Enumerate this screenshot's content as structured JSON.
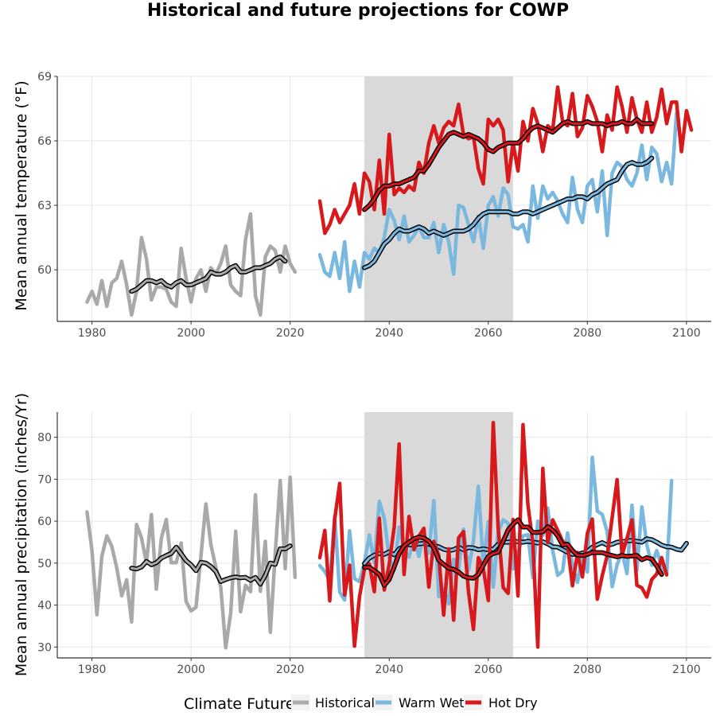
{
  "title": "Historical and future projections for COWP",
  "legend": {
    "title": "Climate Future",
    "items": [
      {
        "label": "Historical",
        "color": "#a9a9a9"
      },
      {
        "label": "Warm Wet",
        "color": "#7ab8e0"
      },
      {
        "label": "Hot Dry",
        "color": "#d7191c"
      }
    ]
  },
  "chart_data": [
    {
      "type": "line",
      "ylabel": "Mean annual temperature (°F)",
      "xlim": [
        1973,
        2105
      ],
      "ylim": [
        57.6,
        69
      ],
      "xticks": [
        1980,
        2000,
        2020,
        2040,
        2060,
        2080,
        2100
      ],
      "yticks": [
        60,
        63,
        66,
        69
      ],
      "grid": true,
      "shaded_period": [
        2035,
        2065
      ],
      "series": [
        {
          "name": "Historical",
          "x_start": 1979,
          "values": [
            58.5,
            59.0,
            58.4,
            59.5,
            58.3,
            59.4,
            59.6,
            60.4,
            59.3,
            57.9,
            59.0,
            61.5,
            60.5,
            58.6,
            59.2,
            59.2,
            59.1,
            58.5,
            58.3,
            61.0,
            59.6,
            58.5,
            59.6,
            60.0,
            59.0,
            60.1,
            59.8,
            60.3,
            61.1,
            59.3,
            59.0,
            58.8,
            61.4,
            62.6,
            58.8,
            57.9,
            60.6,
            61.1,
            60.9,
            59.9,
            61.1,
            60.3,
            59.9
          ]
        },
        {
          "name": "Historical (moving average)",
          "x_start": 1988,
          "values": [
            59.0,
            59.1,
            59.3,
            59.5,
            59.5,
            59.4,
            59.5,
            59.3,
            59.2,
            59.4,
            59.5,
            59.3,
            59.3,
            59.4,
            59.5,
            59.6,
            59.9,
            59.8,
            59.8,
            59.9,
            60.1,
            60.2,
            59.9,
            59.9,
            60.0,
            60.1,
            60.1,
            60.2,
            60.3,
            60.5,
            60.6,
            60.4
          ]
        },
        {
          "name": "Warm Wet",
          "x_start": 2026,
          "values": [
            60.7,
            59.9,
            59.7,
            60.8,
            59.6,
            61.3,
            59.0,
            60.4,
            59.2,
            60.8,
            60.5,
            61.0,
            60.8,
            61.5,
            62.8,
            62.3,
            61.4,
            62.5,
            61.3,
            61.6,
            62.0,
            61.5,
            61.5,
            62.2,
            60.8,
            62.1,
            61.3,
            59.8,
            63.0,
            62.9,
            62.1,
            61.3,
            62.5,
            61.0,
            63.0,
            63.4,
            62.5,
            63.8,
            63.5,
            62.0,
            61.9,
            62.1,
            61.3,
            63.9,
            62.4,
            63.9,
            63.3,
            63.6,
            63.2,
            62.6,
            62.2,
            64.3,
            62.8,
            62.2,
            63.9,
            64.2,
            62.7,
            64.6,
            61.6,
            64.5,
            65.0,
            64.8,
            64.2,
            63.9,
            64.5,
            65.8,
            64.2,
            65.7,
            65.4,
            64.1,
            65.0,
            64.0,
            67.3,
            65.8
          ]
        },
        {
          "name": "Warm Wet (moving average)",
          "x_start": 2035,
          "values": [
            60.1,
            60.2,
            60.4,
            60.8,
            61.2,
            61.4,
            61.7,
            61.9,
            61.8,
            61.8,
            61.9,
            62.0,
            61.9,
            61.7,
            61.8,
            61.7,
            61.6,
            61.7,
            61.8,
            61.8,
            61.8,
            61.9,
            62.1,
            62.4,
            62.6,
            62.7,
            62.7,
            62.7,
            62.7,
            62.7,
            62.6,
            62.6,
            62.7,
            62.7,
            62.6,
            62.7,
            62.8,
            62.9,
            63.0,
            63.1,
            63.2,
            63.3,
            63.3,
            63.4,
            63.4,
            63.3,
            63.5,
            63.6,
            63.8,
            64.0,
            64.1,
            64.2,
            64.6,
            64.9,
            65.0,
            64.9,
            64.9,
            65.0,
            65.2
          ]
        },
        {
          "name": "Hot Dry",
          "x_start": 2026,
          "values": [
            63.2,
            61.7,
            62.1,
            62.8,
            62.2,
            62.6,
            63.0,
            64.0,
            62.6,
            64.5,
            64.1,
            62.8,
            65.1,
            62.6,
            66.3,
            63.5,
            63.8,
            63.6,
            63.9,
            63.7,
            65.0,
            64.5,
            65.9,
            66.7,
            65.9,
            66.6,
            66.9,
            66.7,
            67.7,
            66.3,
            66.1,
            66.2,
            64.7,
            64.0,
            67.0,
            66.7,
            67.0,
            66.5,
            64.1,
            65.9,
            64.6,
            66.9,
            66.0,
            67.5,
            66.8,
            65.5,
            66.7,
            66.5,
            68.5,
            66.9,
            66.7,
            68.2,
            66.2,
            66.6,
            68.1,
            67.6,
            66.9,
            65.5,
            67.2,
            66.5,
            68.5,
            67.6,
            66.4,
            68.0,
            67.0,
            66.4,
            67.8,
            66.4,
            67.1,
            68.4,
            66.8,
            67.8,
            67.8,
            65.5,
            67.4,
            66.5
          ]
        },
        {
          "name": "Hot Dry (moving average)",
          "x_start": 2035,
          "values": [
            62.8,
            63.0,
            63.3,
            63.7,
            63.9,
            63.9,
            64.0,
            64.0,
            64.1,
            64.2,
            64.3,
            64.6,
            64.6,
            64.9,
            65.3,
            65.7,
            66.0,
            66.3,
            66.4,
            66.3,
            66.2,
            66.3,
            66.2,
            66.1,
            65.9,
            65.6,
            65.5,
            65.7,
            65.8,
            65.9,
            65.9,
            65.9,
            66.1,
            66.4,
            66.6,
            66.7,
            66.6,
            66.5,
            66.4,
            66.6,
            66.8,
            66.9,
            66.8,
            66.8,
            66.8,
            66.9,
            66.8,
            66.8,
            66.8,
            66.7,
            66.8,
            66.8,
            66.9,
            66.8,
            66.8,
            67.0,
            66.8,
            66.8,
            66.8
          ]
        }
      ]
    },
    {
      "type": "line",
      "ylabel": "Mean annual precipitation (inches/Yr)",
      "xlim": [
        1973,
        2105
      ],
      "ylim": [
        27.4,
        86
      ],
      "xticks": [
        1980,
        2000,
        2020,
        2040,
        2060,
        2080,
        2100
      ],
      "yticks": [
        30,
        40,
        50,
        60,
        70,
        80
      ],
      "grid": true,
      "shaded_period": [
        2035,
        2065
      ],
      "series": [
        {
          "name": "Historical",
          "x_start": 1979,
          "values": [
            62.2,
            53.0,
            37.7,
            51.6,
            56.5,
            54.0,
            48.9,
            42.2,
            46.0,
            36.0,
            59.2,
            56.0,
            50.0,
            61.6,
            43.8,
            55.9,
            60.4,
            50.1,
            50.1,
            54.8,
            40.9,
            38.6,
            39.5,
            51.8,
            64.1,
            54.5,
            49.0,
            44.3,
            29.8,
            38.1,
            57.6,
            38.4,
            44.7,
            43.2,
            66.3,
            43.3,
            55.2,
            33.5,
            52.4,
            69.7,
            48.7,
            70.5,
            46.6
          ]
        },
        {
          "name": "Historical (moving average)",
          "x_start": 1988,
          "values": [
            48.8,
            48.6,
            49.1,
            50.4,
            49.6,
            50.1,
            51.2,
            51.8,
            52.3,
            53.8,
            52.2,
            50.6,
            49.6,
            48.2,
            50.2,
            50.0,
            49.2,
            48.0,
            45.6,
            46.1,
            46.5,
            46.7,
            46.5,
            46.6,
            45.9,
            46.6,
            45.0,
            47.1,
            50.0,
            49.7,
            53.4,
            53.4,
            54.1
          ]
        },
        {
          "name": "Warm Wet",
          "x_start": 2026,
          "values": [
            49.4,
            48.0,
            45.7,
            61.2,
            43.1,
            41.2,
            57.7,
            46.3,
            45.6,
            50.2,
            56.7,
            50.1,
            64.7,
            60.7,
            51.4,
            48.3,
            58.6,
            53.1,
            51.4,
            55.9,
            51.6,
            57.5,
            52.4,
            64.9,
            42.0,
            44.0,
            40.3,
            50.9,
            48.3,
            58.1,
            48.3,
            55.2,
            68.3,
            49.5,
            59.9,
            44.3,
            57.5,
            60.3,
            59.5,
            48.6,
            52.5,
            56.5,
            56.8,
            46.5,
            60.0,
            56.6,
            63.1,
            53.0,
            47.1,
            48.1,
            57.2,
            49.6,
            45.4,
            52.3,
            47.9,
            75.2,
            62.4,
            61.6,
            57.5,
            44.4,
            49.6,
            52.8,
            47.5,
            63.8,
            48.3,
            63.4,
            54.4,
            49.5,
            53.0,
            49.3,
            47.4,
            69.7
          ]
        },
        {
          "name": "Warm Wet (moving average)",
          "x_start": 2035,
          "values": [
            49.9,
            51.2,
            51.9,
            52.3,
            52.1,
            52.7,
            52.0,
            53.4,
            54.0,
            54.4,
            54.3,
            54.6,
            54.7,
            54.5,
            54.2,
            53.9,
            53.3,
            53.0,
            53.2,
            53.8,
            53.2,
            53.7,
            53.6,
            53.2,
            53.4,
            53.2,
            53.3,
            54.5,
            55.0,
            55.0,
            55.2,
            55.1,
            55.0,
            55.2,
            55.0,
            54.8,
            55.1,
            54.6,
            53.9,
            53.8,
            53.2,
            52.6,
            52.1,
            52.1,
            52.4,
            52.8,
            53.8,
            54.4,
            54.9,
            54.3,
            54.5,
            55.0,
            55.1,
            55.3,
            55.4,
            55.2,
            55.0,
            55.8,
            55.6,
            55.0,
            54.3,
            53.9,
            53.8,
            53.3,
            53.1,
            54.7
          ]
        },
        {
          "name": "Hot Dry",
          "x_start": 2026,
          "values": [
            51.3,
            57.8,
            41.0,
            60.5,
            69.0,
            42.4,
            49.5,
            30.2,
            42.0,
            48.6,
            49.8,
            43.2,
            60.7,
            43.6,
            49.7,
            58.6,
            78.4,
            47.3,
            61.1,
            53.2,
            56.4,
            58.3,
            44.3,
            55.2,
            51.8,
            37.6,
            53.4,
            36.4,
            56.0,
            57.5,
            43.2,
            34.2,
            51.3,
            48.7,
            41.1,
            83.5,
            58.4,
            44.2,
            42.8,
            60.4,
            42.2,
            83.0,
            63.9,
            54.8,
            30.0,
            72.6,
            54.9,
            60.3,
            57.8,
            55.2,
            54.3,
            44.6,
            52.5,
            46.7,
            57.1,
            60.5,
            41.4,
            47.0,
            51.8,
            60.9,
            69.9,
            51.9,
            55.9,
            60.3,
            44.7,
            44.1,
            41.9,
            46.1,
            47.4,
            51.3,
            47.2
          ]
        },
        {
          "name": "Hot Dry (moving average)",
          "x_start": 2035,
          "values": [
            49.0,
            49.0,
            48.2,
            47.3,
            44.7,
            46.1,
            49.1,
            52.3,
            54.1,
            55.0,
            55.8,
            56.2,
            56.0,
            55.2,
            53.6,
            50.7,
            49.7,
            48.8,
            48.5,
            47.9,
            46.9,
            46.5,
            46.4,
            47.3,
            49.5,
            51.6,
            52.3,
            52.6,
            55.2,
            57.9,
            59.3,
            60.3,
            58.6,
            58.6,
            57.3,
            57.3,
            57.5,
            58.7,
            57.9,
            56.5,
            54.3,
            54.5,
            53.0,
            51.9,
            51.8,
            52.1,
            52.5,
            52.5,
            52.5,
            52.1,
            51.8,
            51.5,
            51.8,
            51.6,
            51.7,
            51.8,
            50.8,
            51.3,
            51.0,
            49.3,
            47.3
          ]
        }
      ]
    }
  ]
}
